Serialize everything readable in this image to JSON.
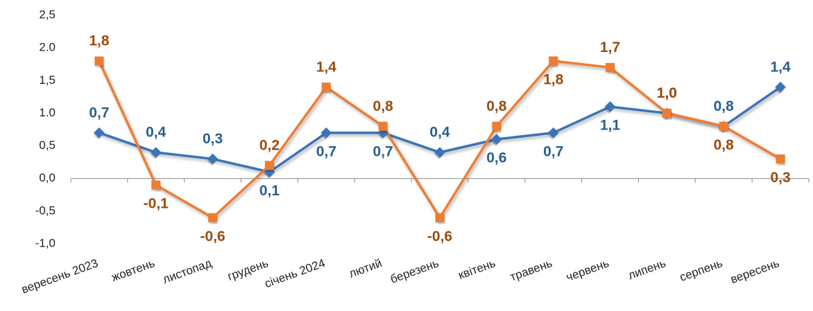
{
  "chart_data": {
    "type": "line",
    "categories": [
      "вересень 2023",
      "жовтень",
      "листопад",
      "грудень",
      "січень 2024",
      "лютий",
      "березень",
      "квітень",
      "травень",
      "червень",
      "липень",
      "серпень",
      "вересень"
    ],
    "series": [
      {
        "color": "#3b73b6",
        "label_color": "#2a5d8f",
        "values": [
          0.7,
          0.4,
          0.3,
          0.1,
          0.7,
          0.7,
          0.4,
          0.6,
          0.7,
          1.1,
          1.0,
          0.8,
          1.4
        ],
        "value_labels": [
          "0,7",
          "0,4",
          "0,3",
          "0,1",
          "0,7",
          "0,7",
          "0,4",
          "0,6",
          "0,7",
          "1,1",
          "1,0",
          "0,8",
          "1,4"
        ]
      },
      {
        "color": "#ed7d31",
        "label_color": "#9a4b0e",
        "values": [
          1.8,
          -0.1,
          -0.6,
          0.2,
          1.4,
          0.8,
          -0.6,
          0.8,
          1.8,
          1.7,
          1.0,
          0.8,
          0.3
        ],
        "value_labels": [
          "1,8",
          "-0,1",
          "-0,6",
          "0,2",
          "1,4",
          "0,8",
          "-0,6",
          "0,8",
          "1,8",
          "1,7",
          "1,0",
          "0,8",
          "0,3"
        ]
      }
    ],
    "ylim": [
      -1.0,
      2.5
    ],
    "yticks": [
      {
        "value": -1.0,
        "label": "-1,0"
      },
      {
        "value": -0.5,
        "label": "-0,5"
      },
      {
        "value": 0,
        "label": "0,0"
      },
      {
        "value": 0.5,
        "label": "0,5"
      },
      {
        "value": 1.0,
        "label": "1.0"
      },
      {
        "value": 1.5,
        "label": "1,5"
      },
      {
        "value": 2.0,
        "label": "2.0"
      },
      {
        "value": 2.5,
        "label": "2,5"
      }
    ],
    "grid": false
  }
}
